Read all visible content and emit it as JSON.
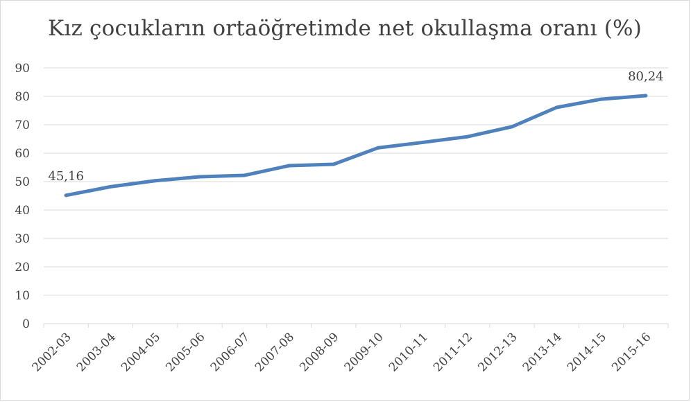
{
  "chart_data": {
    "type": "line",
    "title": "Kız çocukların ortaöğretimde net okullaşma oranı (%)",
    "categories": [
      "2002-03",
      "2003-04",
      "2004-05",
      "2005-06",
      "2006-07",
      "2007-08",
      "2008-09",
      "2009-10",
      "2010-11",
      "2011-12",
      "2012-13",
      "2013-14",
      "2014-15",
      "2015-16"
    ],
    "series": [
      {
        "values": [
          45.16,
          48.2,
          50.3,
          51.7,
          52.2,
          55.6,
          56.1,
          61.9,
          63.8,
          65.8,
          69.3,
          76.1,
          79.0,
          80.24
        ]
      }
    ],
    "data_labels": [
      {
        "index": 0,
        "text": "45,16"
      },
      {
        "index": 13,
        "text": "80,24"
      }
    ],
    "ylim": [
      0,
      90
    ],
    "yticks": [
      0,
      10,
      20,
      30,
      40,
      50,
      60,
      70,
      80,
      90
    ],
    "grid": true,
    "line_color": "#4f81bd",
    "grid_color": "#d9d9d9"
  }
}
